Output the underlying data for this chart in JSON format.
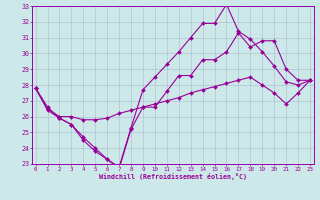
{
  "xlabel": "Windchill (Refroidissement éolien,°C)",
  "x_values": [
    0,
    1,
    2,
    3,
    4,
    5,
    6,
    7,
    8,
    9,
    10,
    11,
    12,
    13,
    14,
    15,
    16,
    17,
    18,
    19,
    20,
    21,
    22,
    23
  ],
  "line1": [
    27.8,
    26.6,
    25.9,
    25.5,
    24.7,
    24.0,
    23.3,
    22.7,
    25.2,
    26.6,
    26.6,
    27.6,
    28.6,
    28.6,
    29.6,
    29.6,
    30.1,
    31.3,
    30.4,
    30.8,
    30.8,
    29.0,
    28.3,
    28.3
  ],
  "line2": [
    27.8,
    26.4,
    25.9,
    25.5,
    24.5,
    23.8,
    23.3,
    22.8,
    25.3,
    27.7,
    28.5,
    29.3,
    30.1,
    31.0,
    31.9,
    31.9,
    33.1,
    31.4,
    30.9,
    30.1,
    29.2,
    28.2,
    28.0,
    28.3
  ],
  "line3": [
    27.8,
    26.5,
    26.0,
    26.0,
    25.8,
    25.8,
    25.9,
    26.2,
    26.4,
    26.6,
    26.8,
    27.0,
    27.2,
    27.5,
    27.7,
    27.9,
    28.1,
    28.3,
    28.5,
    28.0,
    27.5,
    26.8,
    27.5,
    28.3
  ],
  "ylim": [
    23,
    33
  ],
  "xlim": [
    0,
    23
  ],
  "yticks": [
    23,
    24,
    25,
    26,
    27,
    28,
    29,
    30,
    31,
    32,
    33
  ],
  "xticks": [
    0,
    1,
    2,
    3,
    4,
    5,
    6,
    7,
    8,
    9,
    10,
    11,
    12,
    13,
    14,
    15,
    16,
    17,
    18,
    19,
    20,
    21,
    22,
    23
  ],
  "line_color": "#990099",
  "bg_color": "#cce8e8",
  "grid_color": "#aabbcc",
  "spine_color": "#9900aa"
}
